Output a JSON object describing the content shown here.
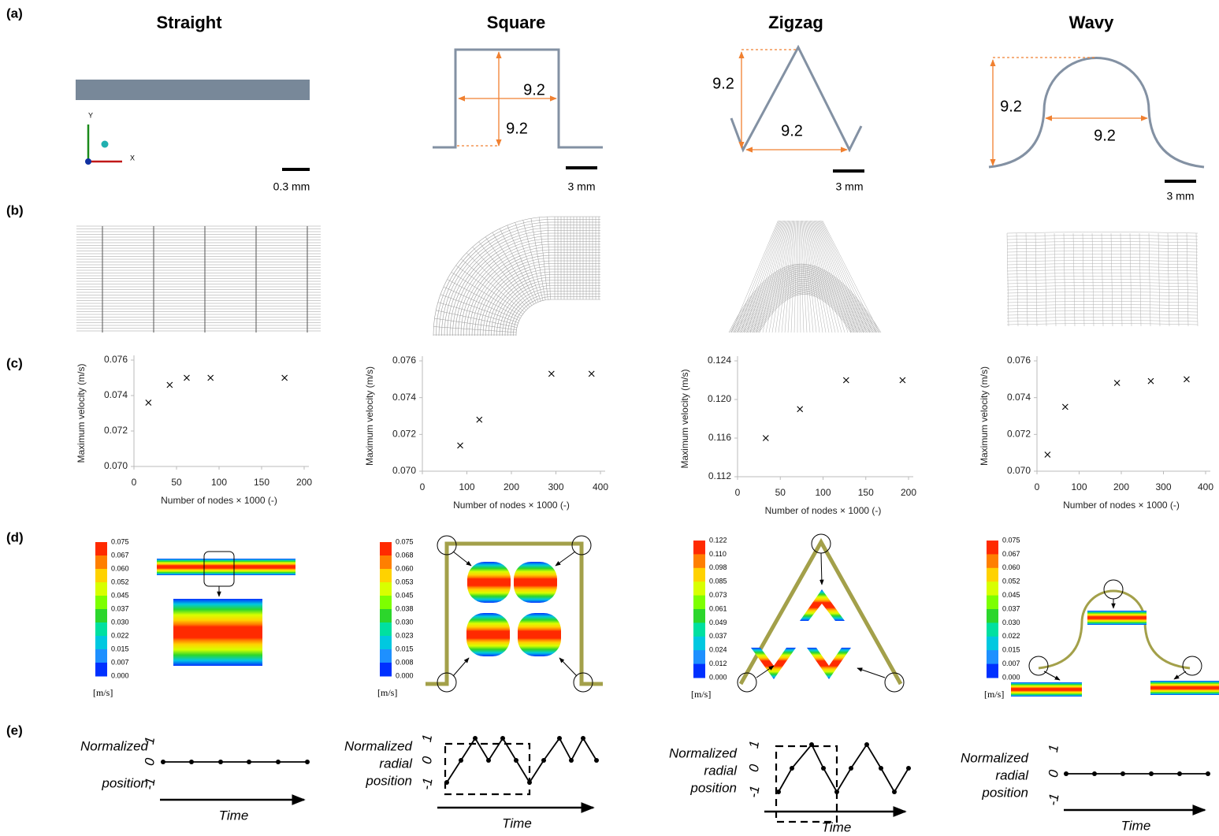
{
  "panel_labels": [
    "(a)",
    "(b)",
    "(c)",
    "(d)",
    "(e)"
  ],
  "columns": [
    {
      "title": "Straight",
      "axis_letters": [
        "Y",
        "X"
      ],
      "scale_bar": "0.3 mm",
      "colorbar": [
        "0.075",
        "0.067",
        "0.060",
        "0.052",
        "0.045",
        "0.037",
        "0.030",
        "0.022",
        "0.015",
        "0.007",
        "0.000"
      ],
      "unit": "[m/s]",
      "radial_label": [
        "Normalized",
        "position"
      ],
      "radial_ticks": [
        "1",
        "0",
        "-1"
      ],
      "time_label": "Time"
    },
    {
      "title": "Square",
      "dimensions": [
        "9.2",
        "9.2"
      ],
      "scale_bar": "3 mm",
      "colorbar": [
        "0.075",
        "0.068",
        "0.060",
        "0.053",
        "0.045",
        "0.038",
        "0.030",
        "0.023",
        "0.015",
        "0.008",
        "0.000"
      ],
      "unit": "[m/s]",
      "radial_label": [
        "Normalized",
        "radial",
        "position"
      ],
      "radial_ticks": [
        "1",
        "0",
        "-1"
      ],
      "time_label": "Time"
    },
    {
      "title": "Zigzag",
      "dimensions": [
        "9.2",
        "9.2"
      ],
      "scale_bar": "3 mm",
      "colorbar": [
        "0.122",
        "0.110",
        "0.098",
        "0.085",
        "0.073",
        "0.061",
        "0.049",
        "0.037",
        "0.024",
        "0.012",
        "0.000"
      ],
      "unit": "[m/s]",
      "radial_label": [
        "Normalized",
        "radial",
        "position"
      ],
      "radial_ticks": [
        "1",
        "0",
        "-1"
      ],
      "time_label": "Time"
    },
    {
      "title": "Wavy",
      "dimensions": [
        "9.2",
        "9.2"
      ],
      "scale_bar": "3 mm",
      "colorbar": [
        "0.075",
        "0.067",
        "0.060",
        "0.052",
        "0.045",
        "0.037",
        "0.030",
        "0.022",
        "0.015",
        "0.007",
        "0.000"
      ],
      "unit": "[m/s]",
      "radial_label": [
        "Normalized",
        "radial",
        "position"
      ],
      "radial_ticks": [
        "1",
        "0",
        "-1"
      ],
      "time_label": "Time"
    }
  ],
  "chart_data": [
    {
      "type": "scatter",
      "x_label": "Number of nodes × 1000 (-)",
      "y_label": "Maximum velocity (m/s)",
      "marker": "x",
      "color": "#000000",
      "x": [
        17,
        42,
        62,
        90,
        177
      ],
      "values": [
        0.0736,
        0.0746,
        0.075,
        0.075,
        0.075
      ],
      "xlim": [
        0,
        200
      ],
      "ylim": [
        0.07,
        0.076
      ],
      "xticks": [
        0,
        50,
        100,
        150,
        200
      ],
      "yticks": [
        {
          "value": 0.07,
          "label": "0.070"
        },
        0.072,
        0.074,
        0.076
      ]
    },
    {
      "type": "scatter",
      "x_label": "Number of nodes × 1000 (-)",
      "y_label": "Maximum velocity (m/s)",
      "marker": "x",
      "color": "#000000",
      "x": [
        85,
        128,
        290,
        380
      ],
      "values": [
        0.0714,
        0.0728,
        0.0753,
        0.0753
      ],
      "xlim": [
        0,
        400
      ],
      "ylim": [
        0.07,
        0.076
      ],
      "xticks": [
        0,
        100,
        200,
        300,
        400
      ],
      "yticks": [
        {
          "value": 0.07,
          "label": "0.070"
        },
        0.072,
        0.074,
        0.076
      ]
    },
    {
      "type": "scatter",
      "x_label": "Number of nodes × 1000 (-)",
      "y_label": "Maximum velocity (m/s)",
      "marker": "x",
      "color": "#000000",
      "x": [
        33,
        73,
        127,
        193
      ],
      "values": [
        0.116,
        0.119,
        0.122,
        0.122
      ],
      "xlim": [
        0,
        200
      ],
      "ylim": [
        0.112,
        0.124
      ],
      "xticks": [
        0,
        50,
        100,
        150,
        200
      ],
      "yticks": [
        0.112,
        0.116,
        {
          "value": 0.12,
          "label": "0.120"
        },
        0.124
      ]
    },
    {
      "type": "scatter",
      "x_label": "Number of nodes × 1000 (-)",
      "y_label": "Maximum velocity (m/s)",
      "marker": "x",
      "color": "#000000",
      "x": [
        25,
        67,
        190,
        270,
        355
      ],
      "values": [
        0.0709,
        0.0735,
        0.0748,
        0.0749,
        0.075
      ],
      "xlim": [
        0,
        400
      ],
      "ylim": [
        0.07,
        0.076
      ],
      "xticks": [
        0,
        100,
        200,
        300,
        400
      ],
      "yticks": [
        {
          "value": 0.07,
          "label": "0.070"
        },
        0.072,
        0.074,
        0.076
      ]
    }
  ]
}
